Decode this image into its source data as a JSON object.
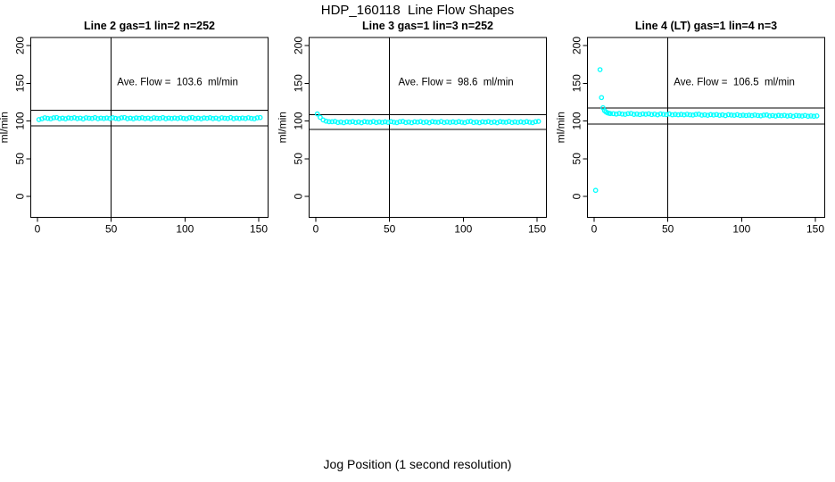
{
  "page": {
    "title": "HDP_160118  Line Flow Shapes",
    "xlabel": "Jog Position (1 second resolution)"
  },
  "style": {
    "point_color": "#00ffff",
    "axis_color": "#000000",
    "background": "#ffffff"
  },
  "chart_data": [
    {
      "type": "scatter",
      "title": "Line 2 gas=1 lin=2 n=252",
      "annotation": "Ave. Flow =  103.6  ml/min",
      "ave_flow": 103.6,
      "ylabel": "ml/min",
      "x_ticks": [
        0,
        50,
        100,
        150
      ],
      "y_ticks": [
        0,
        50,
        100,
        150,
        200
      ],
      "vline_x": 50,
      "hlines": [
        114.0,
        93.2
      ],
      "annotation_pos": [
        95,
        152
      ],
      "points": [
        [
          1,
          101.8
        ],
        [
          3,
          102.9
        ],
        [
          5,
          104.2
        ],
        [
          7,
          103.4
        ],
        [
          9,
          102.9
        ],
        [
          11,
          104.1
        ],
        [
          13,
          104.5
        ],
        [
          15,
          103.0
        ],
        [
          17,
          103.7
        ],
        [
          19,
          102.8
        ],
        [
          21,
          104.0
        ],
        [
          23,
          103.5
        ],
        [
          25,
          104.3
        ],
        [
          27,
          103.1
        ],
        [
          29,
          103.8
        ],
        [
          31,
          102.7
        ],
        [
          33,
          104.2
        ],
        [
          35,
          103.6
        ],
        [
          37,
          103.3
        ],
        [
          39,
          104.4
        ],
        [
          41,
          103.0
        ],
        [
          43,
          103.8
        ],
        [
          45,
          103.2
        ],
        [
          47,
          103.9
        ],
        [
          49,
          103.2
        ],
        [
          51,
          104.2
        ],
        [
          53,
          103.4
        ],
        [
          55,
          102.9
        ],
        [
          57,
          104.1
        ],
        [
          59,
          104.5
        ],
        [
          61,
          103.0
        ],
        [
          63,
          103.7
        ],
        [
          65,
          102.8
        ],
        [
          67,
          104.0
        ],
        [
          69,
          103.5
        ],
        [
          71,
          104.3
        ],
        [
          73,
          103.1
        ],
        [
          75,
          103.8
        ],
        [
          77,
          102.7
        ],
        [
          79,
          104.2
        ],
        [
          81,
          103.6
        ],
        [
          83,
          103.3
        ],
        [
          85,
          104.4
        ],
        [
          87,
          103.0
        ],
        [
          89,
          103.8
        ],
        [
          91,
          103.2
        ],
        [
          93,
          103.9
        ],
        [
          95,
          103.2
        ],
        [
          97,
          104.2
        ],
        [
          99,
          103.4
        ],
        [
          101,
          102.9
        ],
        [
          103,
          104.1
        ],
        [
          105,
          104.5
        ],
        [
          107,
          103.0
        ],
        [
          109,
          103.7
        ],
        [
          111,
          102.8
        ],
        [
          113,
          104.0
        ],
        [
          115,
          103.5
        ],
        [
          117,
          104.3
        ],
        [
          119,
          103.1
        ],
        [
          121,
          103.8
        ],
        [
          123,
          102.7
        ],
        [
          125,
          104.2
        ],
        [
          127,
          103.6
        ],
        [
          129,
          103.3
        ],
        [
          131,
          104.4
        ],
        [
          133,
          103.0
        ],
        [
          135,
          103.8
        ],
        [
          137,
          103.2
        ],
        [
          139,
          103.9
        ],
        [
          141,
          103.2
        ],
        [
          143,
          104.2
        ],
        [
          145,
          103.4
        ],
        [
          147,
          102.9
        ],
        [
          149,
          104.1
        ],
        [
          151,
          104.5
        ]
      ]
    },
    {
      "type": "scatter",
      "title": "Line 3 gas=1 lin=3 n=252",
      "annotation": "Ave. Flow =  98.6  ml/min",
      "ave_flow": 98.6,
      "ylabel": "ml/min",
      "x_ticks": [
        0,
        50,
        100,
        150
      ],
      "y_ticks": [
        0,
        50,
        100,
        150,
        200
      ],
      "vline_x": 50,
      "hlines": [
        108.5,
        88.7
      ],
      "annotation_pos": [
        95,
        152
      ],
      "points": [
        [
          1,
          109.3
        ],
        [
          3,
          104.8
        ],
        [
          5,
          101.3
        ],
        [
          7,
          99.7
        ],
        [
          9,
          99.0
        ],
        [
          11,
          99.0
        ],
        [
          13,
          99.4
        ],
        [
          15,
          97.9
        ],
        [
          17,
          98.6
        ],
        [
          19,
          97.7
        ],
        [
          21,
          98.9
        ],
        [
          23,
          98.4
        ],
        [
          25,
          99.2
        ],
        [
          27,
          98.0
        ],
        [
          29,
          98.7
        ],
        [
          31,
          97.6
        ],
        [
          33,
          99.1
        ],
        [
          35,
          98.5
        ],
        [
          37,
          98.2
        ],
        [
          39,
          99.3
        ],
        [
          41,
          97.9
        ],
        [
          43,
          98.7
        ],
        [
          45,
          98.1
        ],
        [
          47,
          98.8
        ],
        [
          49,
          98.1
        ],
        [
          51,
          99.1
        ],
        [
          53,
          98.3
        ],
        [
          55,
          97.8
        ],
        [
          57,
          99.0
        ],
        [
          59,
          99.4
        ],
        [
          61,
          97.9
        ],
        [
          63,
          98.6
        ],
        [
          65,
          97.7
        ],
        [
          67,
          98.9
        ],
        [
          69,
          98.4
        ],
        [
          71,
          99.2
        ],
        [
          73,
          98.0
        ],
        [
          75,
          98.7
        ],
        [
          77,
          97.6
        ],
        [
          79,
          99.1
        ],
        [
          81,
          98.5
        ],
        [
          83,
          98.2
        ],
        [
          85,
          99.3
        ],
        [
          87,
          97.9
        ],
        [
          89,
          98.7
        ],
        [
          91,
          98.1
        ],
        [
          93,
          98.8
        ],
        [
          95,
          98.1
        ],
        [
          97,
          99.1
        ],
        [
          99,
          98.3
        ],
        [
          101,
          97.8
        ],
        [
          103,
          99.0
        ],
        [
          105,
          99.4
        ],
        [
          107,
          97.9
        ],
        [
          109,
          98.6
        ],
        [
          111,
          97.7
        ],
        [
          113,
          98.9
        ],
        [
          115,
          98.4
        ],
        [
          117,
          99.2
        ],
        [
          119,
          98.0
        ],
        [
          121,
          98.7
        ],
        [
          123,
          97.6
        ],
        [
          125,
          99.1
        ],
        [
          127,
          98.5
        ],
        [
          129,
          98.2
        ],
        [
          131,
          99.3
        ],
        [
          133,
          97.9
        ],
        [
          135,
          98.7
        ],
        [
          137,
          98.1
        ],
        [
          139,
          98.8
        ],
        [
          141,
          98.1
        ],
        [
          143,
          99.1
        ],
        [
          145,
          98.3
        ],
        [
          147,
          97.8
        ],
        [
          149,
          99.0
        ],
        [
          151,
          99.4
        ]
      ]
    },
    {
      "type": "scatter",
      "title": "Line 4 (LT) gas=1 lin=4 n=3",
      "annotation": "Ave. Flow =  106.5  ml/min",
      "ave_flow": 106.5,
      "ylabel": "ml/min",
      "x_ticks": [
        0,
        50,
        100,
        150
      ],
      "y_ticks": [
        0,
        50,
        100,
        150,
        200
      ],
      "vline_x": 50,
      "hlines": [
        117.2,
        95.9
      ],
      "annotation_pos": [
        95,
        152
      ],
      "points": [
        [
          1,
          8.0
        ],
        [
          4,
          168.0
        ],
        [
          5,
          131.0
        ],
        [
          6,
          117.5
        ],
        [
          7,
          113.8
        ],
        [
          8,
          112.0
        ],
        [
          9,
          110.8
        ],
        [
          10,
          110.2
        ],
        [
          11,
          109.8
        ],
        [
          13,
          109.7
        ],
        [
          15,
          109.1
        ],
        [
          17,
          109.9
        ],
        [
          19,
          109.2
        ],
        [
          21,
          108.8
        ],
        [
          23,
          109.7
        ],
        [
          25,
          110.0
        ],
        [
          27,
          108.7
        ],
        [
          29,
          109.2
        ],
        [
          31,
          108.5
        ],
        [
          33,
          109.4
        ],
        [
          35,
          108.9
        ],
        [
          37,
          109.5
        ],
        [
          39,
          108.5
        ],
        [
          41,
          109.1
        ],
        [
          43,
          108.1
        ],
        [
          45,
          109.3
        ],
        [
          47,
          108.8
        ],
        [
          49,
          108.5
        ],
        [
          51,
          109.3
        ],
        [
          53,
          108.2
        ],
        [
          55,
          108.7
        ],
        [
          57,
          108.2
        ],
        [
          59,
          108.7
        ],
        [
          61,
          108.1
        ],
        [
          63,
          108.9
        ],
        [
          65,
          108.2
        ],
        [
          67,
          107.8
        ],
        [
          69,
          108.7
        ],
        [
          71,
          109.0
        ],
        [
          73,
          107.7
        ],
        [
          75,
          108.2
        ],
        [
          77,
          107.5
        ],
        [
          79,
          108.4
        ],
        [
          81,
          107.9
        ],
        [
          83,
          108.5
        ],
        [
          85,
          107.5
        ],
        [
          87,
          108.1
        ],
        [
          89,
          107.1
        ],
        [
          91,
          108.3
        ],
        [
          93,
          107.8
        ],
        [
          95,
          107.5
        ],
        [
          97,
          108.3
        ],
        [
          99,
          107.2
        ],
        [
          101,
          107.7
        ],
        [
          103,
          107.2
        ],
        [
          105,
          107.7
        ],
        [
          107,
          107.1
        ],
        [
          109,
          107.9
        ],
        [
          111,
          107.2
        ],
        [
          113,
          106.8
        ],
        [
          115,
          107.7
        ],
        [
          117,
          108.0
        ],
        [
          119,
          106.7
        ],
        [
          121,
          107.2
        ],
        [
          123,
          106.5
        ],
        [
          125,
          107.4
        ],
        [
          127,
          106.9
        ],
        [
          129,
          107.5
        ],
        [
          131,
          106.5
        ],
        [
          133,
          107.1
        ],
        [
          135,
          106.1
        ],
        [
          137,
          107.3
        ],
        [
          139,
          106.8
        ],
        [
          141,
          106.5
        ],
        [
          143,
          107.3
        ],
        [
          145,
          106.2
        ],
        [
          147,
          106.7
        ],
        [
          149,
          106.2
        ],
        [
          151,
          106.7
        ]
      ]
    }
  ]
}
